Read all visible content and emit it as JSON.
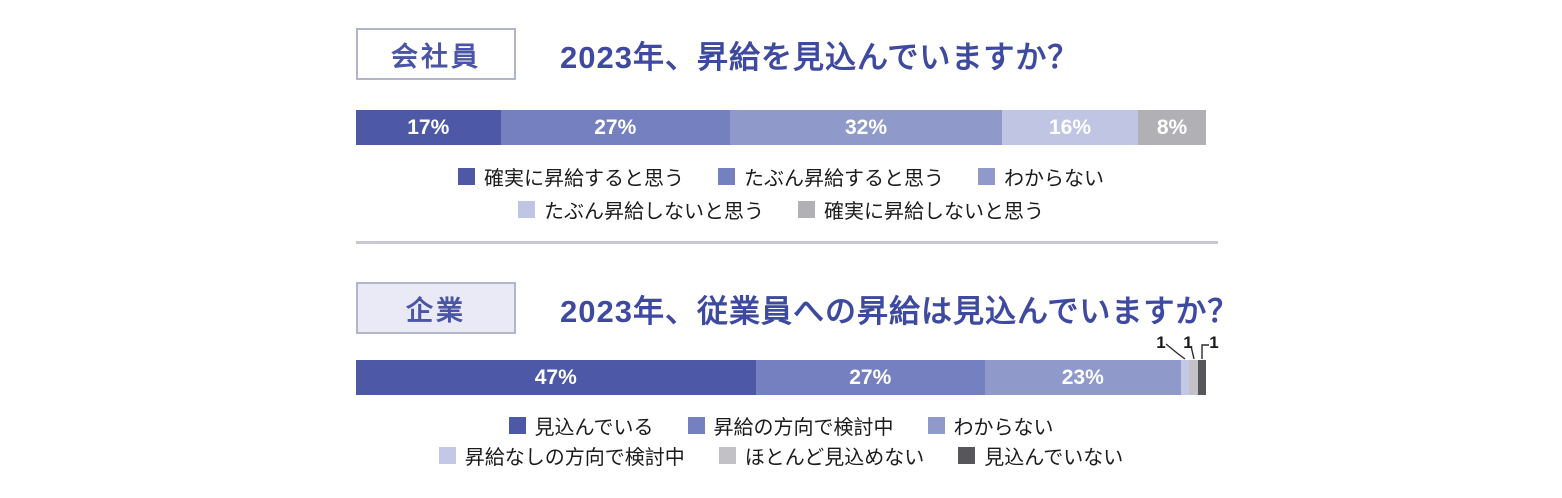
{
  "page": {
    "background": "#ffffff",
    "divider_color": "#c7c8d4",
    "title_color": "#3e4aa0",
    "tag_text_color": "#4a55a5",
    "tag_border_color": "#b2b4c8"
  },
  "chart_data": [
    {
      "type": "bar",
      "variant": "horizontal-stacked-100",
      "tag": "会社員",
      "tag_bg": "#ffffff",
      "title": "2023年、昇給を見込んでいますか？",
      "unit": "%",
      "categories": [
        "確実に昇給すると思う",
        "たぶん昇給すると思う",
        "わからない",
        "たぶん昇給しないと思う",
        "確実に昇給しないと思う"
      ],
      "values": [
        17,
        27,
        32,
        16,
        8
      ],
      "colors": [
        "#4d59a7",
        "#7480bf",
        "#8f9acb",
        "#bfc5e2",
        "#b1b1b5"
      ],
      "bar_labels": [
        "17%",
        "27%",
        "32%",
        "16%",
        "8%"
      ],
      "legend_rows": [
        [
          0,
          1,
          2
        ],
        [
          3,
          4
        ]
      ],
      "legend_position": "bottom-center"
    },
    {
      "type": "bar",
      "variant": "horizontal-stacked-100",
      "tag": "企業",
      "tag_bg": "#e9eaf5",
      "title": "2023年、従業員への昇給は見込んでいますか？",
      "unit": "%",
      "categories": [
        "見込んでいる",
        "昇給の方向で検討中",
        "わからない",
        "昇給なしの方向で検討中",
        "ほとんど見込めない",
        "見込んでいない"
      ],
      "values": [
        47,
        27,
        23,
        1,
        1,
        1
      ],
      "colors": [
        "#4d59a7",
        "#7480bf",
        "#8f9acb",
        "#c3c9e4",
        "#c2c2c6",
        "#57575b"
      ],
      "bar_labels": [
        "47%",
        "27%",
        "23%",
        "",
        "",
        ""
      ],
      "callouts": [
        {
          "label": "1",
          "category": "昇給なしの方向で検討中"
        },
        {
          "label": "1",
          "category": "ほとんど見込めない"
        },
        {
          "label": "1",
          "category": "見込んでいない"
        }
      ],
      "legend_rows": [
        [
          0,
          1,
          2
        ],
        [
          3,
          4,
          5
        ]
      ],
      "legend_position": "bottom-center"
    }
  ]
}
